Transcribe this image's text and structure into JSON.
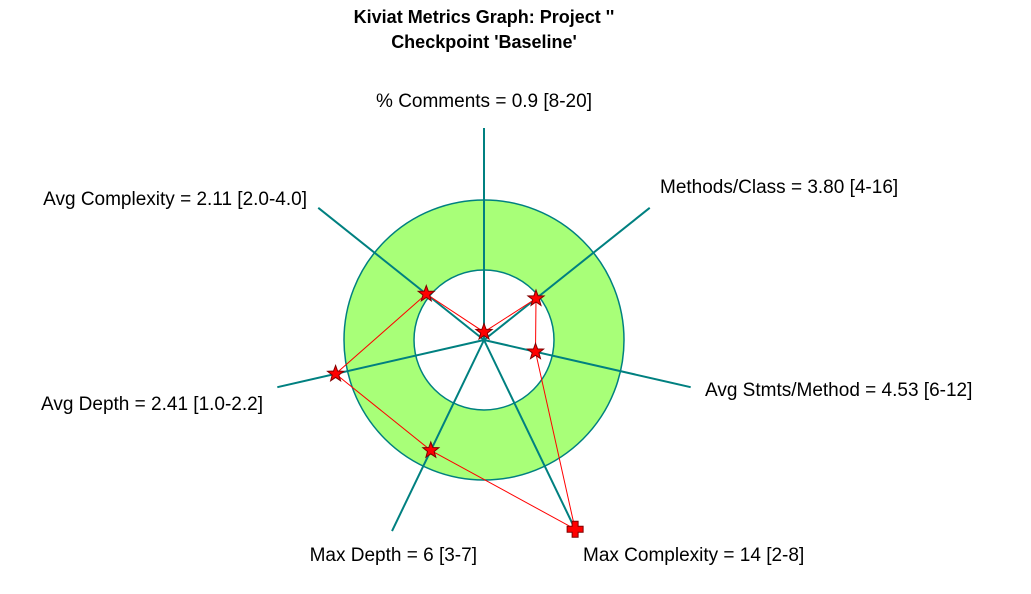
{
  "chart_data": {
    "type": "radar",
    "title": [
      "Kiviat Metrics Graph: Project ''",
      "Checkpoint 'Baseline'"
    ],
    "categories": [
      "% Comments = 0.9 [8-20]",
      "Methods/Class = 3.80 [4-16]",
      "Avg Stmts/Method = 4.53 [6-12]",
      "Max Complexity = 14 [2-8]",
      "Max Depth = 6 [3-7]",
      "Avg Depth = 2.41 [1.0-2.2]",
      "Avg Complexity = 2.11 [2.0-4.0]"
    ],
    "values": [
      0.9,
      3.8,
      4.53,
      14,
      6,
      2.41,
      2.11
    ],
    "ranges": [
      [
        8,
        20
      ],
      [
        4,
        16
      ],
      [
        6,
        12
      ],
      [
        2,
        8
      ],
      [
        3,
        7
      ],
      [
        1,
        2.2
      ],
      [
        2,
        4
      ]
    ],
    "band_color": "#a8ff78",
    "axis_color": "#008080",
    "line_color": "#ff0000"
  }
}
